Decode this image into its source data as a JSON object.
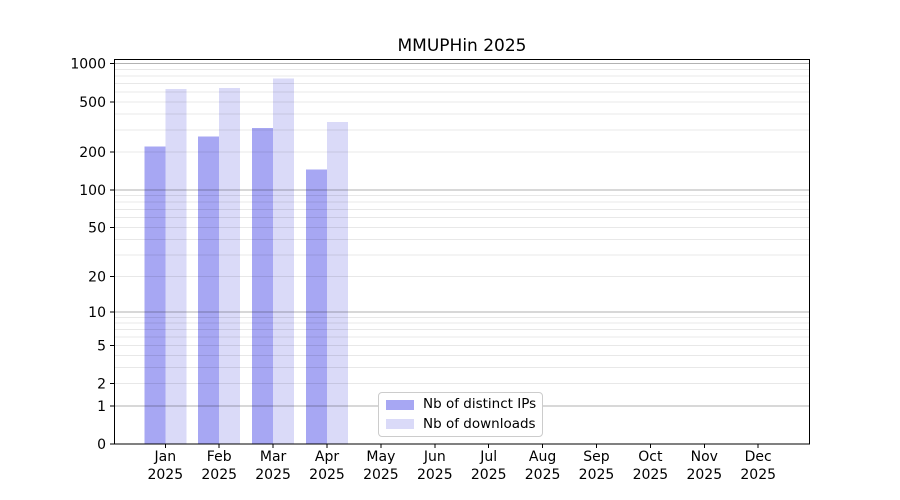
{
  "title": "MMUPHin 2025",
  "colors": {
    "distinct_ips": "#a7a7f3",
    "downloads": "#dadaf8",
    "grid_major": "rgba(0,0,0,0.30)",
    "grid_minor": "rgba(0,0,0,0.09)",
    "axis": "#000000",
    "legend_border": "#cccccc",
    "background": "#ffffff"
  },
  "chart_data": {
    "type": "bar",
    "title": "MMUPHin 2025",
    "categories": [
      "Jan",
      "Feb",
      "Mar",
      "Apr",
      "May",
      "Jun",
      "Jul",
      "Aug",
      "Sep",
      "Oct",
      "Nov",
      "Dec"
    ],
    "year_label": "2025",
    "series": [
      {
        "name": "Nb of distinct IPs",
        "key": "distinct-ips",
        "color": "#a7a7f3",
        "values": [
          221,
          267,
          311,
          146,
          null,
          null,
          null,
          null,
          null,
          null,
          null,
          null
        ]
      },
      {
        "name": "Nb of downloads",
        "key": "downloads",
        "color": "#dadaf8",
        "values": [
          632,
          644,
          764,
          347,
          null,
          null,
          null,
          null,
          null,
          null,
          null,
          null
        ]
      }
    ],
    "yscale": "log1p",
    "yticks": [
      0,
      1,
      2,
      5,
      10,
      20,
      50,
      100,
      200,
      500,
      1000
    ],
    "ytick_labels": [
      "0",
      "1",
      "2",
      "5",
      "10",
      "20",
      "50",
      "100",
      "200",
      "500",
      "1000"
    ],
    "grid_major_values": [
      1,
      10,
      100,
      1000
    ],
    "grid_minor_values": [
      2,
      3,
      4,
      5,
      6,
      7,
      8,
      9,
      20,
      30,
      40,
      50,
      60,
      70,
      80,
      90,
      200,
      300,
      400,
      500,
      600,
      700,
      800,
      900
    ],
    "ylim": [
      0,
      1080
    ],
    "xlabel": "",
    "ylabel": "",
    "grid": "both",
    "legend_position": "lower center-left"
  }
}
